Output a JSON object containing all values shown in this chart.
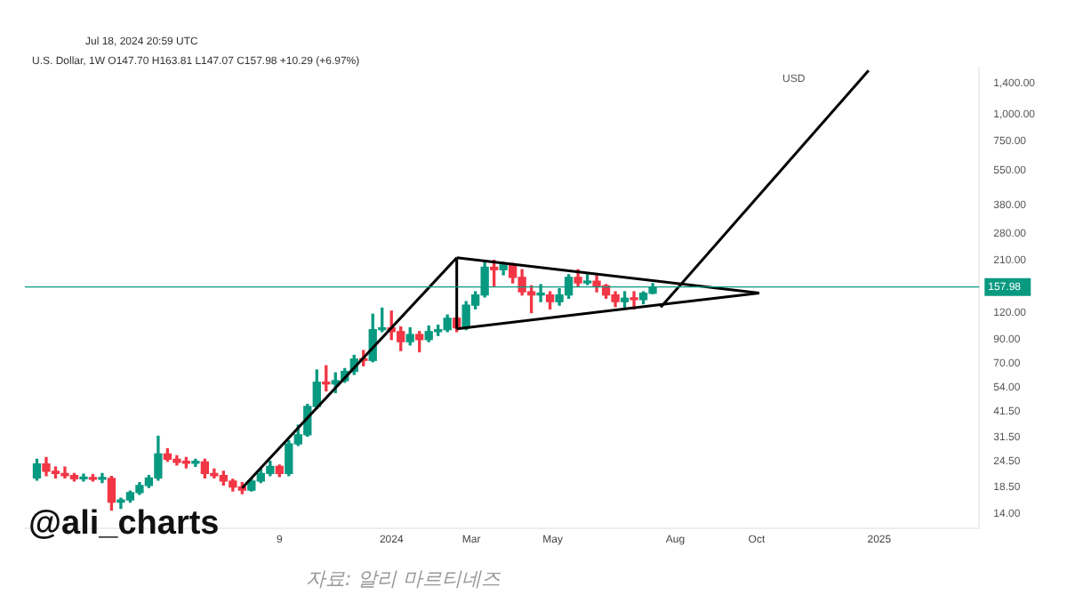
{
  "chart_data": {
    "type": "candlestick",
    "title": "Jul 18, 2024 20:59 UTC",
    "subtitle": "U.S. Dollar, 1W  O147.70 H163.81 L147.07 C157.98 +10.29 (+6.97%)",
    "ylabel": "USD",
    "log": true,
    "grid": false,
    "legend": false,
    "annotations": [
      "@ali_charts",
      "자료: 알리 마르티네즈"
    ],
    "xlim": [
      "2023-04-01",
      "2025-03-17"
    ],
    "xticks": [
      {
        "value": "2023-10-09",
        "label": "9"
      },
      {
        "value": "2024-01-01",
        "label": "2024"
      },
      {
        "value": "2024-03-01",
        "label": "Mar"
      },
      {
        "value": "2024-05-01",
        "label": "May"
      },
      {
        "value": "2024-08-01",
        "label": "Aug"
      },
      {
        "value": "2024-10-01",
        "label": "Oct"
      },
      {
        "value": "2025-01-01",
        "label": "2025"
      }
    ],
    "ylim": [
      12,
      1650
    ],
    "yticks": [
      {
        "value": 14,
        "label": "14.00"
      },
      {
        "value": 18.5,
        "label": "18.50"
      },
      {
        "value": 24.5,
        "label": "24.50"
      },
      {
        "value": 31.5,
        "label": "31.50"
      },
      {
        "value": 41.5,
        "label": "41.50"
      },
      {
        "value": 54,
        "label": "54.00"
      },
      {
        "value": 70,
        "label": "70.00"
      },
      {
        "value": 90,
        "label": "90.00"
      },
      {
        "value": 120,
        "label": "120.00"
      },
      {
        "value": 210,
        "label": "210.00"
      },
      {
        "value": 280,
        "label": "280.00"
      },
      {
        "value": 380,
        "label": "380.00"
      },
      {
        "value": 550,
        "label": "550.00"
      },
      {
        "value": 750,
        "label": "750.00"
      },
      {
        "value": 1000,
        "label": "1,000.00"
      },
      {
        "value": 1400,
        "label": "1,400.00"
      }
    ],
    "ref_lines": [
      {
        "axis": "y",
        "value": 157.98,
        "label": "157.98",
        "color": "#089981"
      }
    ],
    "series": [
      {
        "type": "candlestick",
        "x": [
          "2023-04-10",
          "2023-04-17",
          "2023-04-24",
          "2023-05-01",
          "2023-05-08",
          "2023-05-15",
          "2023-05-22",
          "2023-05-29",
          "2023-06-05",
          "2023-06-12",
          "2023-06-19",
          "2023-06-26",
          "2023-07-03",
          "2023-07-10",
          "2023-07-17",
          "2023-07-24",
          "2023-07-31",
          "2023-08-07",
          "2023-08-14",
          "2023-08-21",
          "2023-08-28",
          "2023-09-04",
          "2023-09-11",
          "2023-09-18",
          "2023-09-25",
          "2023-10-02",
          "2023-10-09",
          "2023-10-16",
          "2023-10-23",
          "2023-10-30",
          "2023-11-06",
          "2023-11-13",
          "2023-11-20",
          "2023-11-27",
          "2023-12-04",
          "2023-12-11",
          "2023-12-18",
          "2023-12-25",
          "2024-01-01",
          "2024-01-08",
          "2024-01-15",
          "2024-01-22",
          "2024-01-29",
          "2024-02-05",
          "2024-02-12",
          "2024-02-19",
          "2024-02-26",
          "2024-03-04",
          "2024-03-11",
          "2024-03-18",
          "2024-03-25",
          "2024-04-01",
          "2024-04-08",
          "2024-04-15",
          "2024-04-22",
          "2024-04-29",
          "2024-05-06",
          "2024-05-13",
          "2024-05-20",
          "2024-05-27",
          "2024-06-03",
          "2024-06-10",
          "2024-06-17",
          "2024-06-24",
          "2024-07-01",
          "2024-07-08",
          "2024-07-15"
        ],
        "ohlc": [
          [
            20.5,
            25,
            20,
            23.8
          ],
          [
            23.8,
            25.5,
            21,
            22
          ],
          [
            22,
            23,
            20.5,
            21.5
          ],
          [
            21.5,
            23,
            20.5,
            21
          ],
          [
            21,
            21.5,
            19.8,
            20.3
          ],
          [
            20.3,
            21.3,
            19.8,
            20.6
          ],
          [
            20.6,
            21.2,
            19.8,
            20.2
          ],
          [
            20.2,
            21.5,
            19.5,
            20.4
          ],
          [
            20.4,
            20.8,
            14.5,
            15.8
          ],
          [
            15.8,
            16.5,
            14.8,
            16.2
          ],
          [
            16.2,
            17.8,
            15.8,
            17.5
          ],
          [
            17.5,
            19.5,
            17.2,
            18.9
          ],
          [
            18.9,
            21,
            18.5,
            20.5
          ],
          [
            20.5,
            32,
            20,
            26.5
          ],
          [
            26.5,
            28,
            24.5,
            25
          ],
          [
            25,
            26,
            23.5,
            24.2
          ],
          [
            24.2,
            25.5,
            22.8,
            24
          ],
          [
            24,
            25,
            23.2,
            24.3
          ],
          [
            24.3,
            25,
            20.5,
            21.5
          ],
          [
            21.5,
            22.5,
            20.5,
            21
          ],
          [
            21,
            22,
            19,
            19.8
          ],
          [
            19.8,
            20.2,
            17.8,
            18.6
          ],
          [
            18.6,
            19.5,
            17.3,
            18
          ],
          [
            18,
            20.3,
            17.8,
            19.8
          ],
          [
            19.8,
            22.5,
            19.5,
            21.5
          ],
          [
            21.5,
            24.5,
            21,
            23.2
          ],
          [
            23.2,
            23.5,
            20.8,
            21.5
          ],
          [
            21.5,
            30.5,
            21,
            29.5
          ],
          [
            29.5,
            36,
            29,
            32.5
          ],
          [
            32.5,
            45,
            32,
            44
          ],
          [
            44,
            65,
            43,
            57
          ],
          [
            57,
            68,
            52,
            56
          ],
          [
            56,
            63,
            51,
            58
          ],
          [
            58,
            66,
            57,
            64
          ],
          [
            64,
            76,
            62,
            73
          ],
          [
            73,
            80,
            68,
            72
          ],
          [
            72,
            118,
            71,
            100
          ],
          [
            100,
            126,
            98,
            102
          ],
          [
            102,
            122,
            90,
            98
          ],
          [
            98,
            103,
            80,
            88
          ],
          [
            88,
            102,
            85,
            95
          ],
          [
            95,
            98,
            79,
            90
          ],
          [
            90,
            104,
            88,
            98
          ],
          [
            98,
            105,
            94,
            100
          ],
          [
            100,
            117,
            98,
            113
          ],
          [
            113,
            115,
            98,
            102
          ],
          [
            102,
            135,
            100,
            130
          ],
          [
            130,
            150,
            125,
            145
          ],
          [
            145,
            210,
            142,
            195
          ],
          [
            195,
            210,
            160,
            190
          ],
          [
            190,
            205,
            180,
            200
          ],
          [
            200,
            203,
            165,
            175
          ],
          [
            175,
            190,
            145,
            150
          ],
          [
            150,
            160,
            120,
            145
          ],
          [
            145,
            162,
            135,
            145
          ],
          [
            145,
            150,
            125,
            135
          ],
          [
            135,
            155,
            130,
            145
          ],
          [
            145,
            180,
            140,
            175
          ],
          [
            175,
            190,
            160,
            165
          ],
          [
            165,
            180,
            162,
            168
          ],
          [
            168,
            178,
            150,
            160
          ],
          [
            160,
            162,
            140,
            145
          ],
          [
            145,
            150,
            128,
            135
          ],
          [
            135,
            150,
            125,
            140
          ],
          [
            140,
            150,
            125,
            138
          ],
          [
            138,
            150,
            132,
            147.7
          ],
          [
            147.7,
            163.81,
            147.07,
            157.98
          ]
        ]
      },
      {
        "type": "line",
        "color": "#000000",
        "x": [
          "2023-09-11",
          "2024-02-19"
        ],
        "values": [
          18.4,
          216
        ]
      },
      {
        "type": "line",
        "color": "#000000",
        "x": [
          "2024-02-19",
          "2024-10-03"
        ],
        "values": [
          216,
          148
        ]
      },
      {
        "type": "line",
        "color": "#000000",
        "x": [
          "2024-02-19",
          "2024-10-03"
        ],
        "values": [
          101,
          148
        ]
      },
      {
        "type": "line",
        "color": "#000000",
        "x": [
          "2024-02-19",
          "2024-02-19"
        ],
        "values": [
          101,
          216
        ]
      },
      {
        "type": "line",
        "color": "#000000",
        "x": [
          "2024-07-21",
          "2024-12-24"
        ],
        "values": [
          127,
          1600
        ]
      }
    ]
  }
}
